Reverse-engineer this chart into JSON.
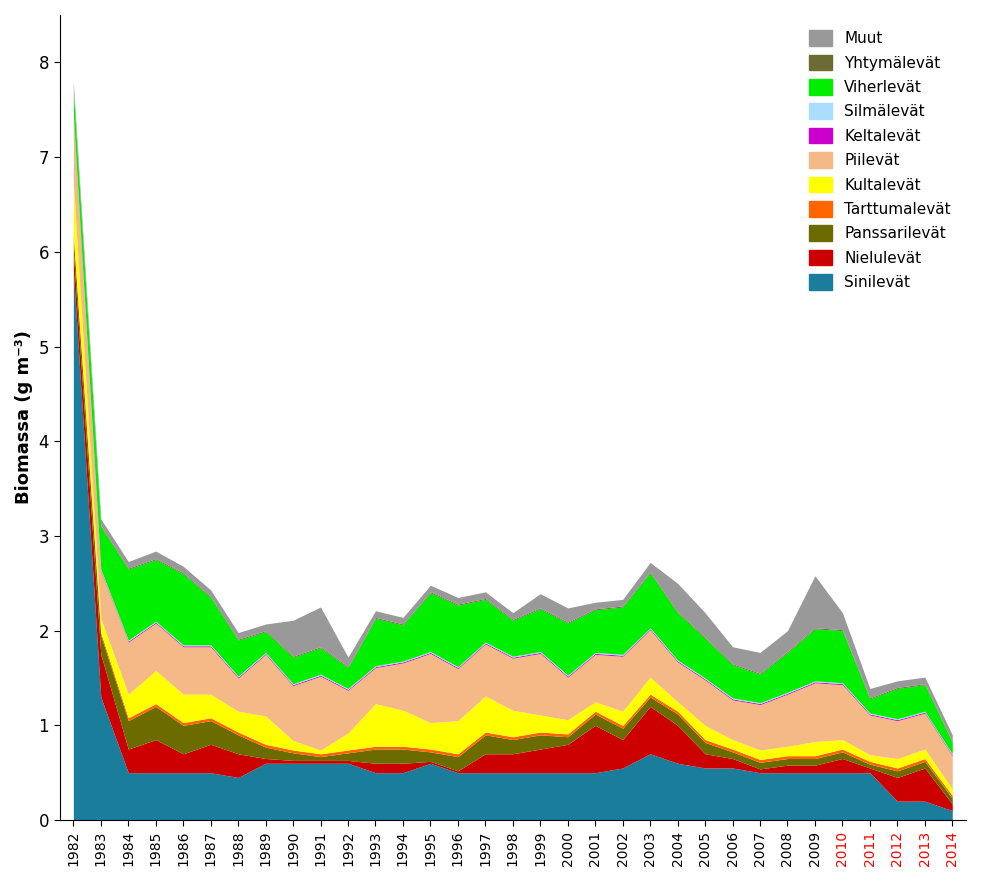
{
  "years": [
    1982,
    1983,
    1984,
    1985,
    1986,
    1987,
    1988,
    1989,
    1990,
    1991,
    1992,
    1993,
    1994,
    1995,
    1996,
    1997,
    1998,
    1999,
    2000,
    2001,
    2002,
    2003,
    2004,
    2005,
    2006,
    2007,
    2008,
    2009,
    2010,
    2011,
    2012,
    2013,
    2014
  ],
  "series": {
    "Sinilevät": [
      5.8,
      1.3,
      0.5,
      0.5,
      0.5,
      0.5,
      0.45,
      0.6,
      0.6,
      0.6,
      0.6,
      0.5,
      0.5,
      0.6,
      0.5,
      0.5,
      0.5,
      0.5,
      0.5,
      0.5,
      0.55,
      0.7,
      0.6,
      0.55,
      0.55,
      0.5,
      0.5,
      0.5,
      0.5,
      0.5,
      0.2,
      0.2,
      0.1
    ],
    "Nielulevät": [
      0.2,
      0.45,
      0.25,
      0.35,
      0.2,
      0.3,
      0.25,
      0.05,
      0.03,
      0.03,
      0.03,
      0.1,
      0.1,
      0.02,
      0.02,
      0.2,
      0.2,
      0.25,
      0.3,
      0.5,
      0.3,
      0.5,
      0.4,
      0.15,
      0.1,
      0.04,
      0.08,
      0.08,
      0.15,
      0.05,
      0.25,
      0.35,
      0.07
    ],
    "Panssarilevät": [
      0.15,
      0.2,
      0.3,
      0.35,
      0.3,
      0.25,
      0.2,
      0.12,
      0.08,
      0.04,
      0.08,
      0.15,
      0.15,
      0.1,
      0.15,
      0.2,
      0.15,
      0.15,
      0.08,
      0.12,
      0.12,
      0.1,
      0.12,
      0.12,
      0.07,
      0.07,
      0.07,
      0.07,
      0.07,
      0.04,
      0.07,
      0.07,
      0.06
    ],
    "Tarttumalevät": [
      0.03,
      0.03,
      0.03,
      0.03,
      0.03,
      0.03,
      0.03,
      0.03,
      0.03,
      0.03,
      0.03,
      0.03,
      0.03,
      0.03,
      0.03,
      0.03,
      0.03,
      0.03,
      0.03,
      0.03,
      0.03,
      0.03,
      0.03,
      0.03,
      0.03,
      0.03,
      0.03,
      0.03,
      0.03,
      0.03,
      0.03,
      0.03,
      0.03
    ],
    "Kultalevät": [
      0.55,
      0.15,
      0.25,
      0.35,
      0.3,
      0.25,
      0.22,
      0.3,
      0.1,
      0.04,
      0.18,
      0.45,
      0.38,
      0.28,
      0.35,
      0.38,
      0.28,
      0.18,
      0.15,
      0.1,
      0.15,
      0.18,
      0.1,
      0.15,
      0.1,
      0.1,
      0.1,
      0.15,
      0.1,
      0.07,
      0.1,
      0.1,
      0.07
    ],
    "Piilevät": [
      0.7,
      0.5,
      0.55,
      0.5,
      0.5,
      0.5,
      0.35,
      0.65,
      0.58,
      0.78,
      0.45,
      0.38,
      0.5,
      0.73,
      0.55,
      0.55,
      0.55,
      0.65,
      0.45,
      0.5,
      0.58,
      0.5,
      0.42,
      0.48,
      0.42,
      0.48,
      0.55,
      0.62,
      0.58,
      0.42,
      0.4,
      0.38,
      0.35
    ],
    "Keltalevät": [
      0.01,
      0.01,
      0.01,
      0.01,
      0.01,
      0.01,
      0.01,
      0.01,
      0.01,
      0.01,
      0.01,
      0.01,
      0.01,
      0.01,
      0.01,
      0.01,
      0.01,
      0.01,
      0.01,
      0.01,
      0.01,
      0.01,
      0.01,
      0.01,
      0.01,
      0.01,
      0.01,
      0.01,
      0.01,
      0.01,
      0.01,
      0.01,
      0.01
    ],
    "Silmälevät": [
      0.01,
      0.01,
      0.01,
      0.01,
      0.01,
      0.01,
      0.01,
      0.01,
      0.01,
      0.01,
      0.01,
      0.01,
      0.01,
      0.01,
      0.01,
      0.01,
      0.01,
      0.01,
      0.01,
      0.01,
      0.01,
      0.01,
      0.01,
      0.01,
      0.01,
      0.01,
      0.01,
      0.01,
      0.01,
      0.01,
      0.01,
      0.01,
      0.01
    ],
    "Viherlevät": [
      0.25,
      0.45,
      0.75,
      0.65,
      0.75,
      0.5,
      0.38,
      0.22,
      0.28,
      0.28,
      0.22,
      0.5,
      0.38,
      0.62,
      0.65,
      0.45,
      0.38,
      0.45,
      0.55,
      0.45,
      0.5,
      0.58,
      0.5,
      0.42,
      0.35,
      0.3,
      0.42,
      0.55,
      0.55,
      0.15,
      0.32,
      0.28,
      0.12
    ],
    "Yhtymälevät": [
      0.01,
      0.01,
      0.01,
      0.01,
      0.01,
      0.01,
      0.01,
      0.01,
      0.01,
      0.01,
      0.01,
      0.01,
      0.01,
      0.01,
      0.01,
      0.01,
      0.01,
      0.01,
      0.01,
      0.01,
      0.01,
      0.01,
      0.01,
      0.01,
      0.01,
      0.01,
      0.01,
      0.01,
      0.01,
      0.01,
      0.01,
      0.01,
      0.01
    ],
    "Muut": [
      0.08,
      0.07,
      0.07,
      0.08,
      0.07,
      0.07,
      0.07,
      0.07,
      0.38,
      0.42,
      0.1,
      0.07,
      0.07,
      0.07,
      0.07,
      0.07,
      0.07,
      0.15,
      0.15,
      0.07,
      0.07,
      0.1,
      0.3,
      0.26,
      0.18,
      0.22,
      0.22,
      0.55,
      0.18,
      0.1,
      0.07,
      0.07,
      0.07
    ]
  },
  "colors": {
    "Sinilevät": "#1a7d9b",
    "Nielulevät": "#cc0000",
    "Panssarilevät": "#6b6b00",
    "Tarttumalevät": "#ff6600",
    "Kultalevät": "#ffff00",
    "Piilevät": "#f5b887",
    "Keltalevät": "#cc00cc",
    "Silmälevät": "#aaddff",
    "Viherlevät": "#00ee00",
    "Yhtymälevät": "#6b6b33",
    "Muut": "#999999"
  },
  "legend_order": [
    "Muut",
    "Yhtymälevät",
    "Viherlevät",
    "Silmälevät",
    "Keltalevät",
    "Piilevät",
    "Kultalevät",
    "Tarttumalevät",
    "Panssarilevät",
    "Nielulevät",
    "Sinilevät"
  ],
  "stack_order": [
    "Sinilevät",
    "Nielulevät",
    "Panssarilevät",
    "Tarttumalevät",
    "Kultalevät",
    "Piilevät",
    "Keltalevät",
    "Silmälevät",
    "Viherlevät",
    "Yhtymälevät",
    "Muut"
  ],
  "ylabel": "Biomassa (g m⁻³)",
  "ylim": [
    0,
    8.5
  ],
  "yticks": [
    0,
    1,
    2,
    3,
    4,
    5,
    6,
    7,
    8
  ],
  "red_years": [
    2010,
    2011,
    2012,
    2013,
    2014
  ]
}
